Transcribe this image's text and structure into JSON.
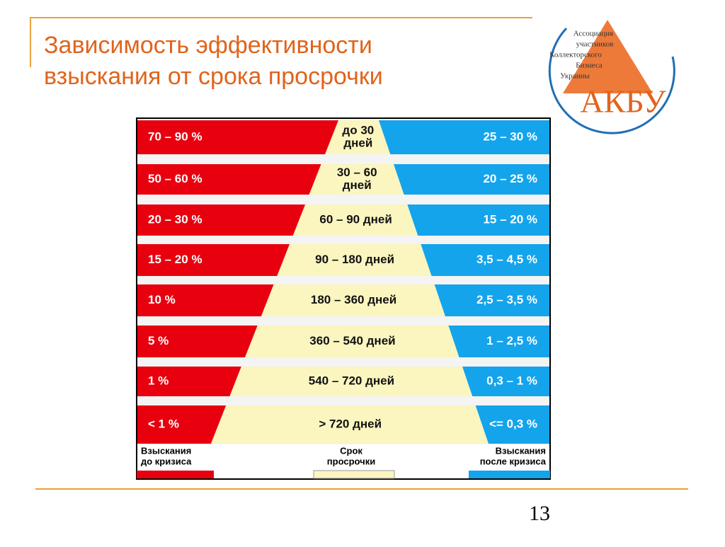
{
  "title": [
    "Зависимость эффективности",
    "взыскания от срока просрочки"
  ],
  "logo": {
    "lines": [
      "Ассоциация",
      "участников",
      "Коллекторского",
      "Бизнеса",
      "Украины"
    ],
    "abbr": "АКБУ"
  },
  "rows": [
    {
      "before": "70 – 90 %",
      "term": [
        "до 30",
        "дней"
      ],
      "after": "25 – 30 %"
    },
    {
      "before": "50 – 60 %",
      "term": [
        "30 – 60",
        "дней"
      ],
      "after": "20 – 25 %"
    },
    {
      "before": "20 – 30 %",
      "term": [
        "60 – 90 дней"
      ],
      "after": "15 – 20 %"
    },
    {
      "before": "15 – 20 %",
      "term": [
        "90 – 180 дней"
      ],
      "after": "3,5 – 4,5 %"
    },
    {
      "before": "10 %",
      "term": [
        "180 – 360 дней"
      ],
      "after": "2,5 – 3,5 %"
    },
    {
      "before": "5 %",
      "term": [
        "360 – 540 дней"
      ],
      "after": "1 – 2,5 %"
    },
    {
      "before": "1 %",
      "term": [
        "540 – 720 дней"
      ],
      "after": "0,3 – 1 %"
    },
    {
      "before": "< 1 %",
      "term": [
        "> 720 дней"
      ],
      "after": "<= 0,3 %"
    }
  ],
  "legend": [
    [
      "Взыскания",
      "до кризиса"
    ],
    [
      "Срок",
      "просрочки"
    ],
    [
      "Взыскания",
      "после кризиса"
    ]
  ],
  "page_number": "13"
}
